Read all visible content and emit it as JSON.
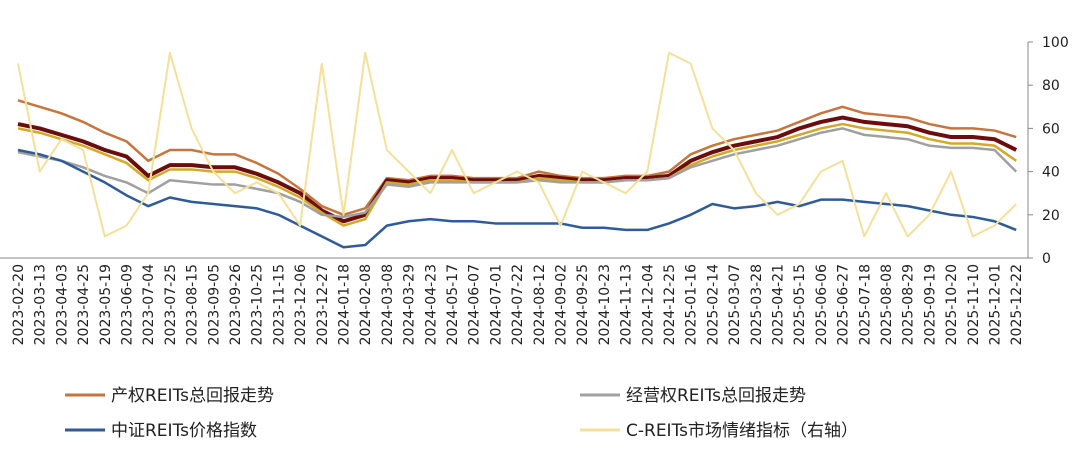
{
  "chart_data": {
    "type": "line",
    "categories": [
      "2023-02-20",
      "2023-03-13",
      "2023-04-03",
      "2023-04-25",
      "2023-05-19",
      "2023-06-09",
      "2023-07-04",
      "2023-07-25",
      "2023-08-15",
      "2023-09-05",
      "2023-09-26",
      "2023-10-25",
      "2023-11-15",
      "2023-12-06",
      "2023-12-27",
      "2024-01-18",
      "2024-02-08",
      "2024-03-08",
      "2024-03-29",
      "2024-04-23",
      "2024-05-17",
      "2024-06-07",
      "2024-07-01",
      "2024-07-22",
      "2024-08-12",
      "2024-09-02",
      "2024-09-25",
      "2024-10-23",
      "2024-11-13",
      "2024-12-04",
      "2024-12-25",
      "2025-01-16",
      "2025-02-14",
      "2025-03-07",
      "2025-03-28",
      "2025-04-21",
      "2025-05-15",
      "2025-06-06",
      "2025-06-27",
      "2025-07-18",
      "2025-08-08",
      "2025-08-29",
      "2025-09-19",
      "2025-10-20",
      "2025-11-10",
      "2025-12-01",
      "2025-12-22"
    ],
    "series": [
      {
        "name": "产权REITs总回报走势",
        "color": "#c8743e",
        "values": [
          73,
          70,
          67,
          63,
          58,
          54,
          45,
          50,
          50,
          48,
          48,
          44,
          39,
          32,
          24,
          20,
          23,
          37,
          36,
          38,
          38,
          37,
          37,
          37,
          40,
          38,
          37,
          37,
          38,
          38,
          40,
          48,
          52,
          55,
          57,
          59,
          63,
          67,
          70,
          67,
          66,
          65,
          62,
          60,
          60,
          59,
          56
        ]
      },
      {
        "color": "#6b0d0d",
        "values": [
          62,
          60,
          57,
          54,
          50,
          47,
          38,
          43,
          43,
          42,
          42,
          39,
          35,
          30,
          22,
          17,
          20,
          36,
          35,
          37,
          37,
          36,
          36,
          36,
          38,
          37,
          36,
          36,
          37,
          37,
          38,
          45,
          49,
          52,
          54,
          56,
          60,
          63,
          65,
          63,
          62,
          61,
          58,
          56,
          56,
          55,
          50
        ]
      },
      {
        "color": "#d4a829",
        "values": [
          60,
          58,
          55,
          52,
          48,
          44,
          36,
          41,
          41,
          40,
          40,
          37,
          33,
          28,
          21,
          15,
          18,
          35,
          34,
          36,
          36,
          35,
          35,
          35,
          37,
          36,
          35,
          35,
          36,
          36,
          37,
          43,
          47,
          50,
          52,
          54,
          57,
          60,
          62,
          60,
          59,
          58,
          55,
          53,
          53,
          52,
          45
        ]
      },
      {
        "name": "经营权REITs总回报走势",
        "color": "#a0a0a0",
        "values": [
          49,
          47,
          45,
          42,
          38,
          35,
          30,
          36,
          35,
          34,
          34,
          32,
          30,
          26,
          20,
          19,
          21,
          34,
          33,
          35,
          35,
          35,
          35,
          35,
          36,
          35,
          35,
          35,
          36,
          36,
          37,
          42,
          45,
          48,
          50,
          52,
          55,
          58,
          60,
          57,
          56,
          55,
          52,
          51,
          51,
          50,
          40
        ]
      },
      {
        "name": "中证REITs价格指数",
        "color": "#2e5b9a",
        "values": [
          50,
          48,
          45,
          40,
          35,
          29,
          24,
          28,
          26,
          25,
          24,
          23,
          20,
          15,
          10,
          5,
          6,
          15,
          17,
          18,
          17,
          17,
          16,
          16,
          16,
          16,
          14,
          14,
          13,
          13,
          16,
          20,
          25,
          23,
          24,
          26,
          24,
          27,
          27,
          26,
          25,
          24,
          22,
          20,
          19,
          17,
          13
        ]
      },
      {
        "name": "C-REITs市场情绪指标（右轴）",
        "color": "#f5e09a",
        "values": [
          90,
          40,
          55,
          50,
          10,
          15,
          30,
          95,
          60,
          40,
          30,
          35,
          30,
          15,
          90,
          20,
          95,
          50,
          40,
          30,
          50,
          30,
          35,
          40,
          35,
          15,
          40,
          35,
          30,
          40,
          95,
          90,
          60,
          50,
          30,
          20,
          25,
          40,
          45,
          10,
          30,
          10,
          20,
          40,
          10,
          15,
          25
        ]
      }
    ],
    "ylim": [
      0,
      100
    ],
    "yticks": [
      0,
      20,
      40,
      60,
      80,
      100
    ]
  }
}
